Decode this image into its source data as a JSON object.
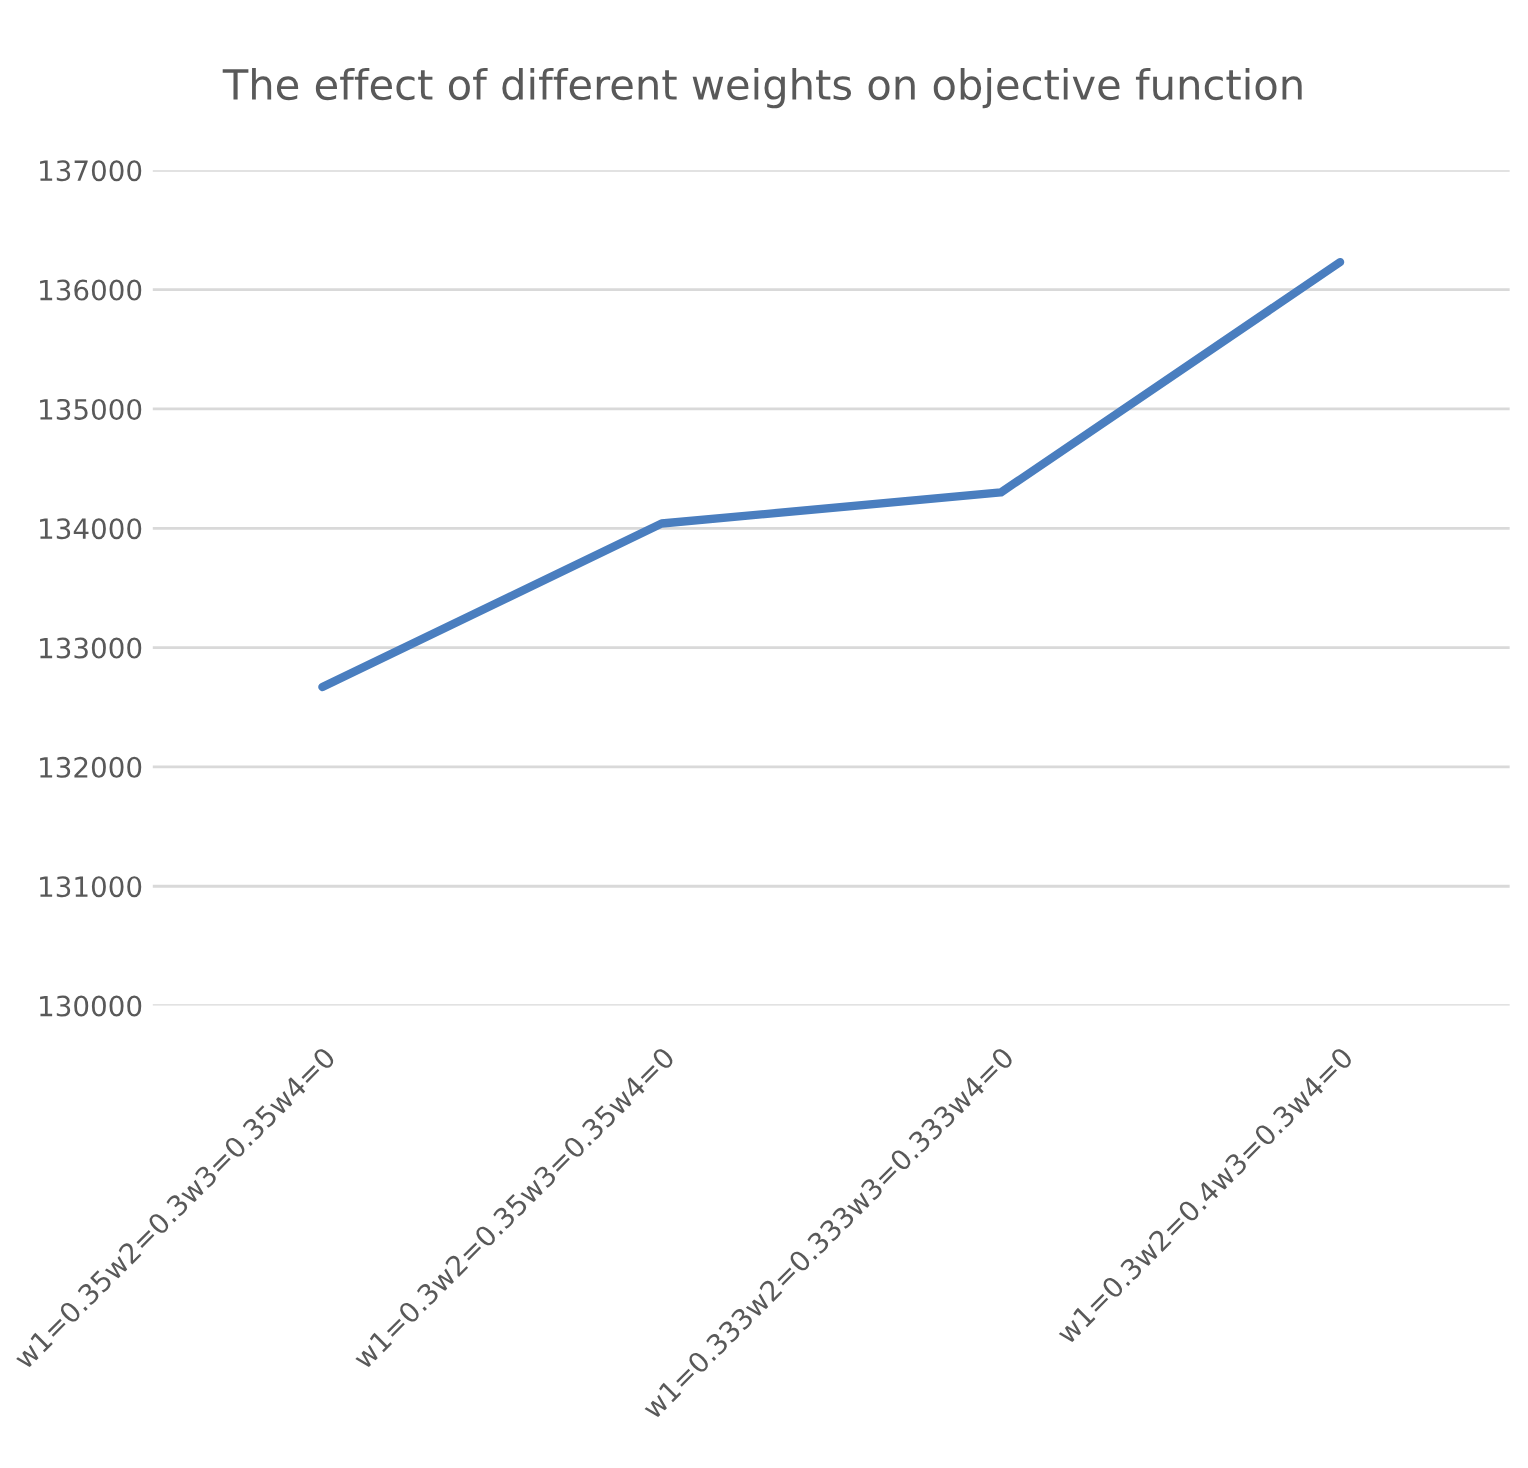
{
  "chart_data": {
    "type": "line",
    "title": "The effect of different weights on objective function",
    "categories": [
      "w1=0.35w2=0.3w3=0.35w4=0",
      "w1=0.3w2=0.35w3=0.35w4=0",
      "w1=0.333w2=0.333w3=0.333w4=0",
      "w1=0.3w2=0.4w3=0.3w4=0"
    ],
    "series": [
      {
        "color": "#4a7ebf",
        "values": [
          132670,
          134040,
          134300,
          136230
        ]
      }
    ],
    "ylim": [
      130000,
      137000
    ],
    "yticks": [
      130000,
      131000,
      132000,
      133000,
      134000,
      135000,
      136000,
      137000
    ],
    "grid": "y",
    "legend": false,
    "marker": "none",
    "line_style": "solid"
  }
}
